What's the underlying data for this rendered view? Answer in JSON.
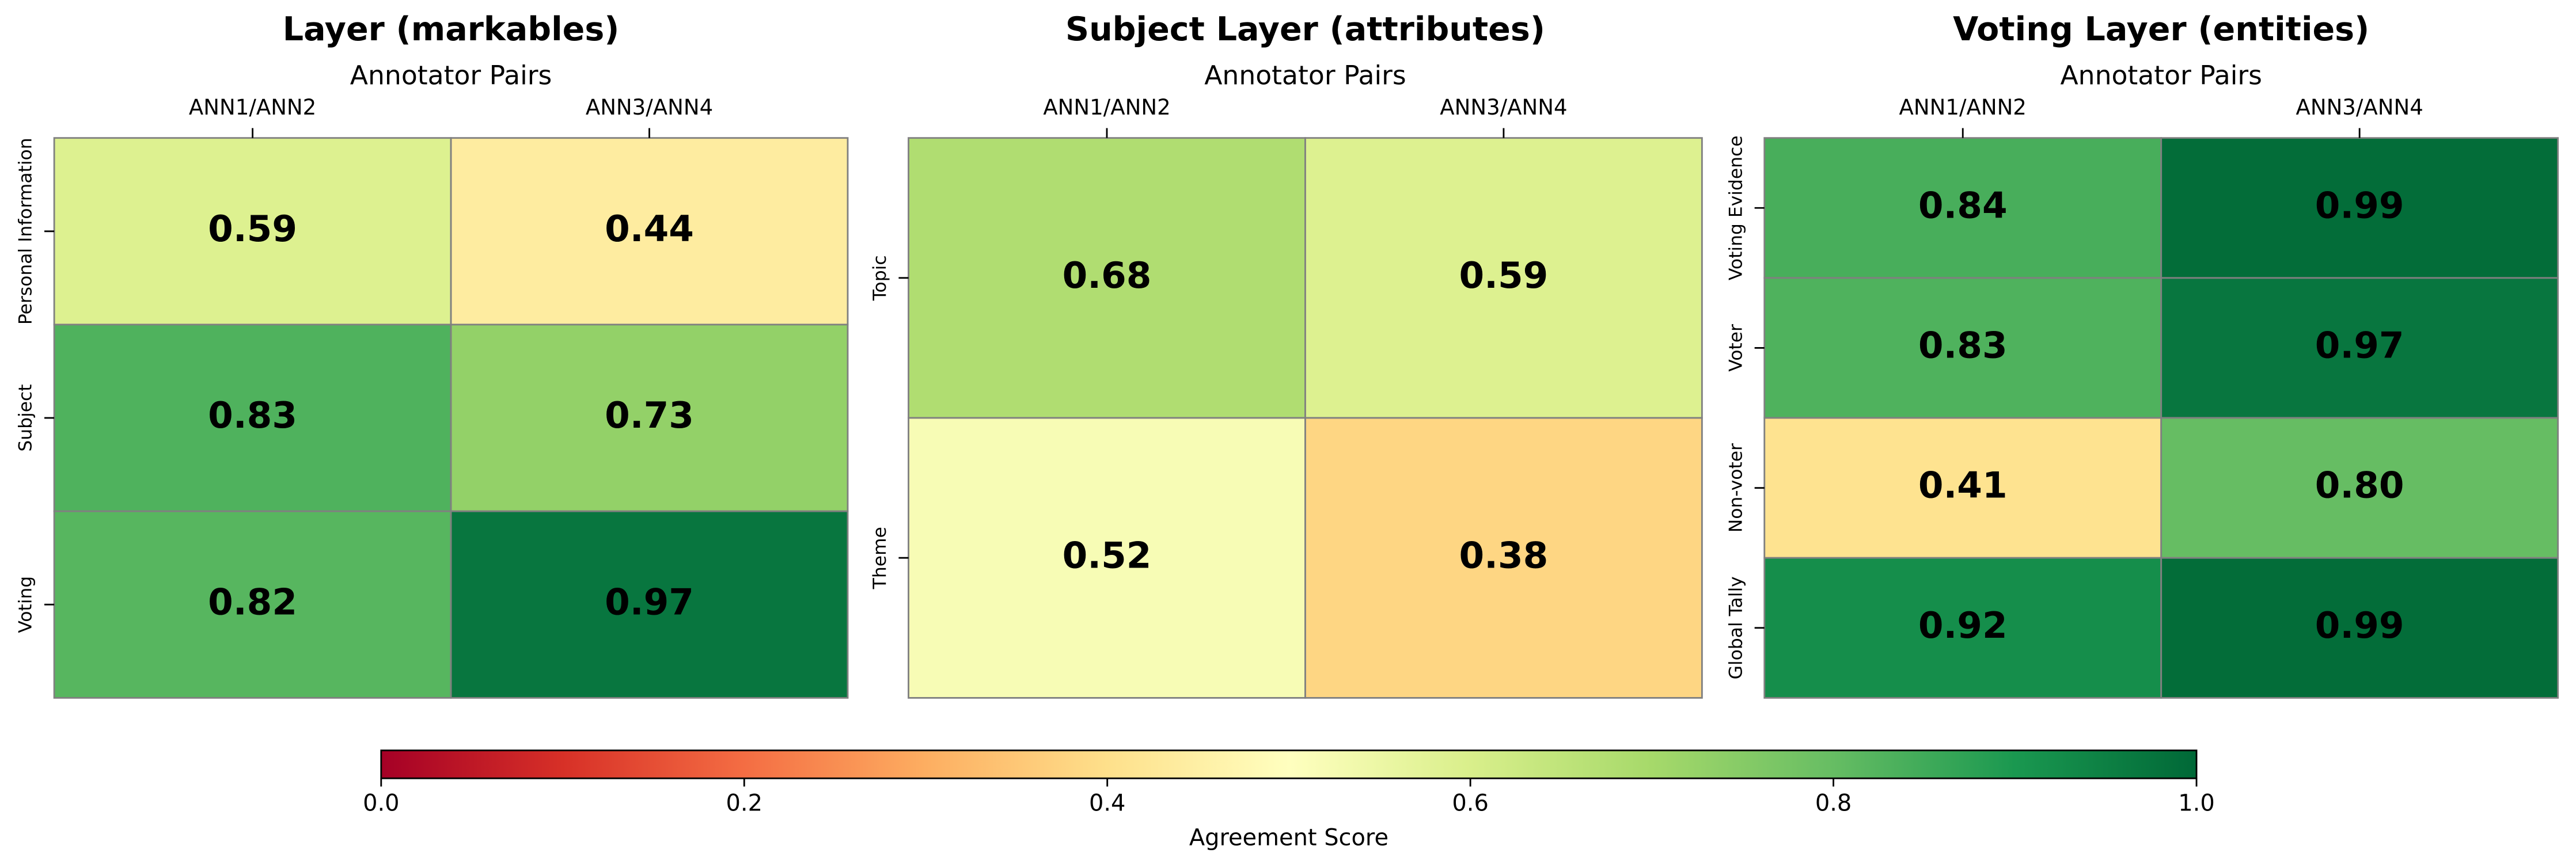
{
  "chart_data": [
    {
      "type": "heatmap",
      "title": "Layer (markables)",
      "xlabel": "Annotator Pairs",
      "x": [
        "ANN1/ANN2",
        "ANN3/ANN4"
      ],
      "y": [
        "Personal Information",
        "Subject",
        "Voting"
      ],
      "values": [
        [
          0.59,
          0.44
        ],
        [
          0.83,
          0.73
        ],
        [
          0.82,
          0.97
        ]
      ],
      "value_labels": [
        [
          "0.59",
          "0.44"
        ],
        [
          "0.83",
          "0.73"
        ],
        [
          "0.82",
          "0.97"
        ]
      ]
    },
    {
      "type": "heatmap",
      "title": "Subject Layer (attributes)",
      "xlabel": "Annotator Pairs",
      "x": [
        "ANN1/ANN2",
        "ANN3/ANN4"
      ],
      "y": [
        "Topic",
        "Theme"
      ],
      "values": [
        [
          0.68,
          0.59
        ],
        [
          0.52,
          0.38
        ]
      ],
      "value_labels": [
        [
          "0.68",
          "0.59"
        ],
        [
          "0.52",
          "0.38"
        ]
      ]
    },
    {
      "type": "heatmap",
      "title": "Voting Layer (entities)",
      "xlabel": "Annotator Pairs",
      "x": [
        "ANN1/ANN2",
        "ANN3/ANN4"
      ],
      "y": [
        "Voting Evidence",
        "Voter",
        "Non-voter",
        "Global Tally"
      ],
      "values": [
        [
          0.84,
          0.99
        ],
        [
          0.83,
          0.97
        ],
        [
          0.41,
          0.8
        ],
        [
          0.92,
          0.99
        ]
      ],
      "value_labels": [
        [
          "0.84",
          "0.99"
        ],
        [
          "0.83",
          "0.97"
        ],
        [
          "0.41",
          "0.80"
        ],
        [
          "0.92",
          "0.99"
        ]
      ]
    }
  ],
  "colorbar": {
    "label": "Agreement Score",
    "colormap": "RdYlGn",
    "lim": [
      0,
      1
    ],
    "ticks": [
      {
        "value": 0,
        "label": "0.0"
      },
      {
        "value": 0.2,
        "label": "0.2"
      },
      {
        "value": 0.4,
        "label": "0.4"
      },
      {
        "value": 0.6,
        "label": "0.6"
      },
      {
        "value": 0.8,
        "label": "0.8"
      },
      {
        "value": 1,
        "label": "1.0"
      }
    ]
  }
}
